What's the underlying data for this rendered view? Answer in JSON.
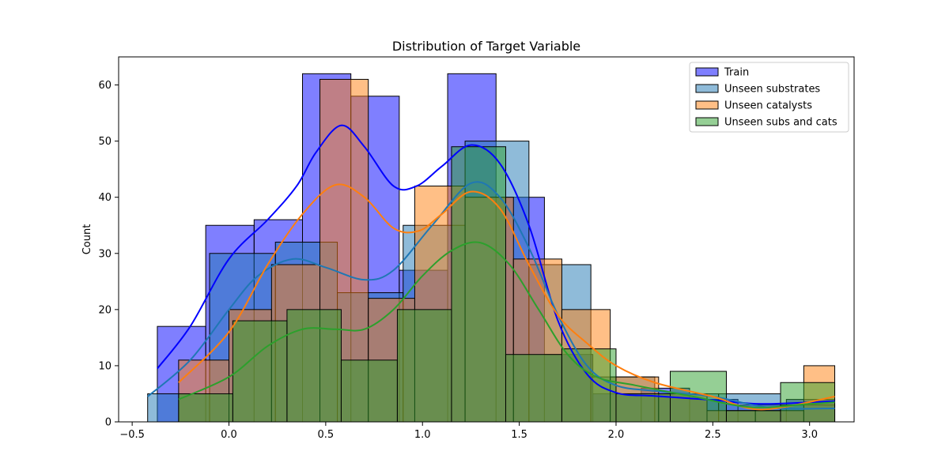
{
  "chart_data": {
    "type": "histogram",
    "title": "Distribution of Target Variable",
    "xlabel": "",
    "ylabel": "Count",
    "xlim": [
      -0.57,
      3.23
    ],
    "ylim": [
      0,
      65
    ],
    "xticks": [
      -0.5,
      0.0,
      0.5,
      1.0,
      1.5,
      2.0,
      2.5,
      3.0
    ],
    "xtick_labels": [
      "−0.5",
      "0.0",
      "0.5",
      "1.0",
      "1.5",
      "2.0",
      "2.5",
      "3.0"
    ],
    "yticks": [
      0,
      10,
      20,
      30,
      40,
      50,
      60
    ],
    "ytick_labels": [
      "0",
      "10",
      "20",
      "30",
      "40",
      "50",
      "60"
    ],
    "grid": false,
    "legend_position": "top-right",
    "series": [
      {
        "name": "Train",
        "color": "#0000ff",
        "bin_edges": [
          -0.37,
          -0.12,
          0.13,
          0.38,
          0.63,
          0.88,
          1.13,
          1.38,
          1.63,
          1.88,
          2.13,
          2.38,
          2.63,
          2.88,
          3.13
        ],
        "counts": [
          17,
          35,
          36,
          62,
          58,
          27,
          62,
          40,
          12,
          5,
          6,
          4,
          3,
          4
        ],
        "kde": [
          [
            -0.37,
            9.5
          ],
          [
            -0.2,
            17
          ],
          [
            0.0,
            29
          ],
          [
            0.2,
            36
          ],
          [
            0.35,
            42
          ],
          [
            0.45,
            48
          ],
          [
            0.58,
            52.8
          ],
          [
            0.7,
            49
          ],
          [
            0.85,
            42
          ],
          [
            0.97,
            42
          ],
          [
            1.1,
            45.5
          ],
          [
            1.25,
            49.3
          ],
          [
            1.4,
            46
          ],
          [
            1.55,
            35
          ],
          [
            1.7,
            18
          ],
          [
            1.85,
            8.5
          ],
          [
            2.0,
            5.2
          ],
          [
            2.2,
            4.6
          ],
          [
            2.5,
            3.9
          ],
          [
            2.75,
            3.2
          ],
          [
            3.13,
            3.7
          ]
        ]
      },
      {
        "name": "Unseen substrates",
        "color": "#1f77b4",
        "bin_edges": [
          -0.42,
          -0.1,
          0.24,
          0.56,
          0.9,
          1.22,
          1.55,
          1.87,
          2.2,
          2.53,
          2.85,
          3.13
        ],
        "counts": [
          5,
          30,
          32,
          23,
          35,
          50,
          28,
          8,
          5,
          5,
          3
        ],
        "kde": [
          [
            -0.42,
            4.5
          ],
          [
            -0.2,
            11
          ],
          [
            0.0,
            20
          ],
          [
            0.15,
            26
          ],
          [
            0.33,
            29
          ],
          [
            0.5,
            27.5
          ],
          [
            0.7,
            25.3
          ],
          [
            0.85,
            27
          ],
          [
            1.05,
            35
          ],
          [
            1.25,
            42.5
          ],
          [
            1.4,
            40
          ],
          [
            1.55,
            31
          ],
          [
            1.7,
            19
          ],
          [
            1.85,
            10
          ],
          [
            2.0,
            6.5
          ],
          [
            2.2,
            5.5
          ],
          [
            2.5,
            4.5
          ],
          [
            2.8,
            2.5
          ],
          [
            3.13,
            2.4
          ]
        ]
      },
      {
        "name": "Unseen catalysts",
        "color": "#ff7f0e",
        "bin_edges": [
          -0.26,
          0.0,
          0.22,
          0.47,
          0.72,
          0.96,
          1.22,
          1.47,
          1.72,
          1.97,
          2.22,
          2.47,
          2.72,
          2.97,
          3.13
        ],
        "counts": [
          11,
          20,
          28,
          61,
          22,
          42,
          40,
          29,
          20,
          8,
          5,
          2,
          2,
          10
        ],
        "kde": [
          [
            -0.26,
            7
          ],
          [
            0.0,
            16
          ],
          [
            0.2,
            28
          ],
          [
            0.38,
            37
          ],
          [
            0.55,
            42.2
          ],
          [
            0.7,
            40
          ],
          [
            0.85,
            34.5
          ],
          [
            0.98,
            34
          ],
          [
            1.1,
            37
          ],
          [
            1.25,
            41
          ],
          [
            1.4,
            38
          ],
          [
            1.55,
            28
          ],
          [
            1.7,
            19
          ],
          [
            1.85,
            14
          ],
          [
            2.0,
            10
          ],
          [
            2.2,
            7
          ],
          [
            2.5,
            4.5
          ],
          [
            2.75,
            2.2
          ],
          [
            3.13,
            4.5
          ]
        ]
      },
      {
        "name": "Unseen subs and cats",
        "color": "#2ca02c",
        "bin_edges": [
          -0.26,
          0.02,
          0.3,
          0.58,
          0.87,
          1.15,
          1.43,
          1.72,
          2.0,
          2.28,
          2.57,
          2.85,
          3.13
        ],
        "counts": [
          5,
          18,
          20,
          11,
          20,
          49,
          12,
          13,
          5,
          9,
          2,
          7
        ],
        "kde": [
          [
            -0.26,
            4
          ],
          [
            0.0,
            8
          ],
          [
            0.2,
            13.5
          ],
          [
            0.38,
            16.5
          ],
          [
            0.55,
            16.5
          ],
          [
            0.7,
            16.5
          ],
          [
            0.85,
            20
          ],
          [
            1.0,
            26
          ],
          [
            1.15,
            30.5
          ],
          [
            1.3,
            31.9
          ],
          [
            1.45,
            28
          ],
          [
            1.6,
            20
          ],
          [
            1.75,
            12
          ],
          [
            1.9,
            8
          ],
          [
            2.1,
            6.5
          ],
          [
            2.4,
            4.5
          ],
          [
            2.7,
            2.6
          ],
          [
            3.0,
            3.2
          ],
          [
            3.13,
            3.5
          ]
        ]
      }
    ]
  }
}
